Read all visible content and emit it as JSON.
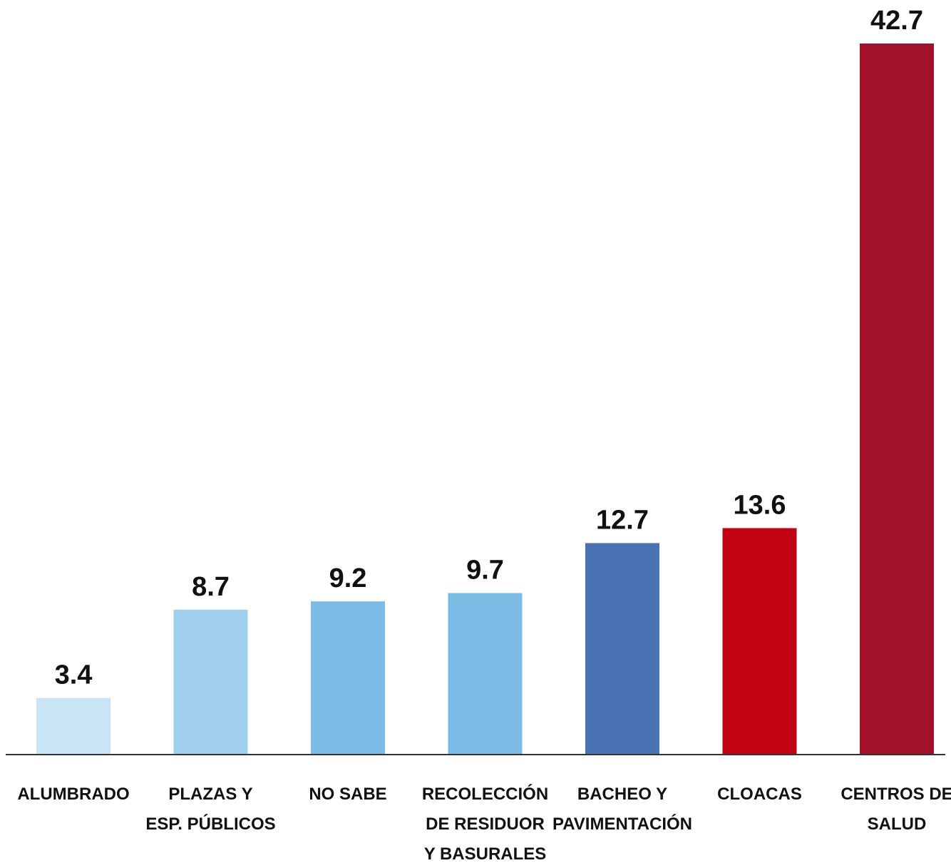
{
  "chart_data": {
    "type": "bar",
    "title": "",
    "xlabel": "",
    "ylabel": "",
    "ylim": [
      0,
      42.7
    ],
    "grid": false,
    "categories": [
      [
        "ALUMBRADO"
      ],
      [
        "PLAZAS Y",
        "ESP. PÚBLICOS"
      ],
      [
        "NO SABE"
      ],
      [
        "RECOLECCIÓN",
        "DE RESIDUOR",
        "Y BASURALES"
      ],
      [
        "BACHEO Y",
        "PAVIMENTACIÓN"
      ],
      [
        "CLOACAS"
      ],
      [
        "CENTROS DE",
        "SALUD"
      ]
    ],
    "values": [
      3.4,
      8.7,
      9.2,
      9.7,
      12.7,
      13.6,
      42.7
    ],
    "value_labels": [
      "3.4",
      "8.7",
      "9.2",
      "9.7",
      "12.7",
      "13.6",
      "42.7"
    ],
    "colors": [
      "#c9e4f4",
      "#a0d0ed",
      "#7bbbe6",
      "#7bbbe6",
      "#4a73b3",
      "#c20314",
      "#a11127"
    ],
    "baseline_color": "#333333"
  }
}
